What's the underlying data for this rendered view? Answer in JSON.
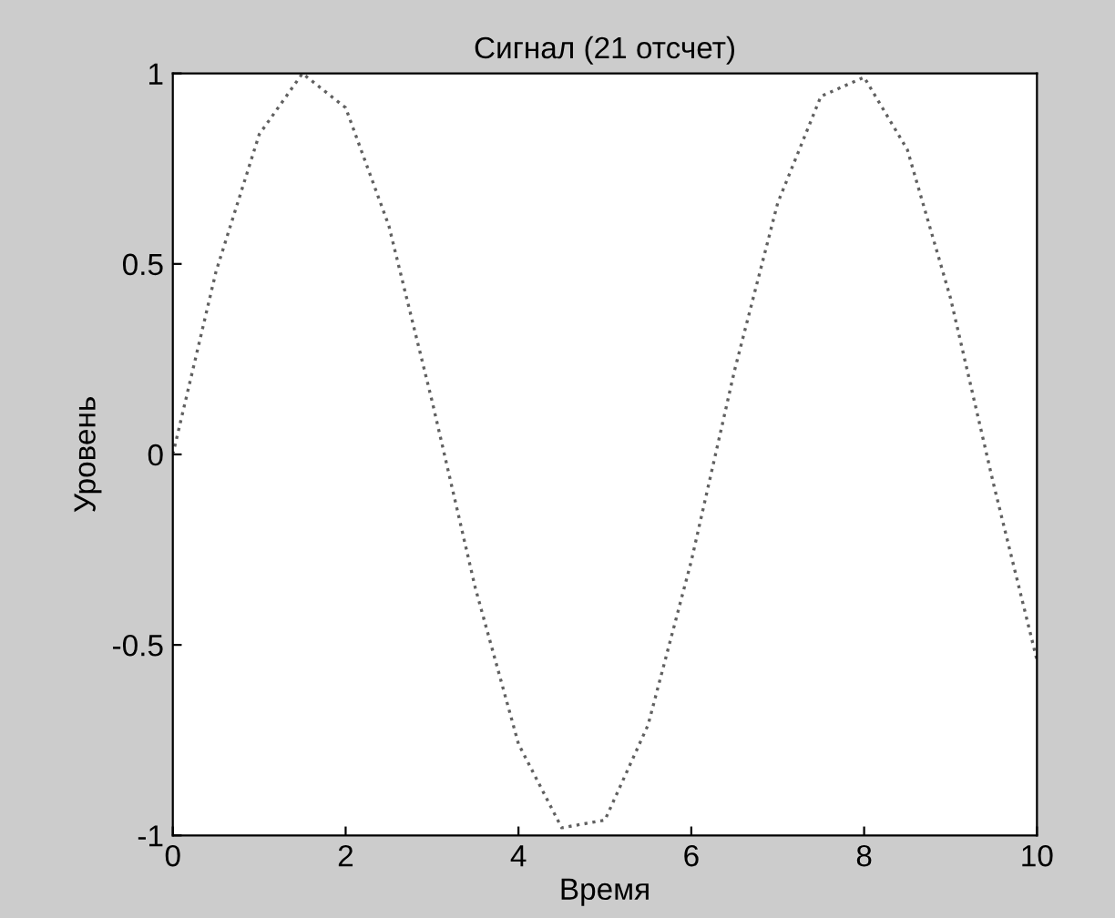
{
  "chart_data": {
    "type": "line",
    "title": "Сигнал (21 отсчет)",
    "xlabel": "Время",
    "ylabel": "Уровень",
    "x": [
      0,
      0.5,
      1,
      1.5,
      2,
      2.5,
      3,
      3.5,
      4,
      4.5,
      5,
      5.5,
      6,
      6.5,
      7,
      7.5,
      8,
      8.5,
      9,
      9.5,
      10
    ],
    "series": [
      {
        "color": "#606060",
        "values": [
          0,
          0.48,
          0.84,
          1.0,
          0.91,
          0.6,
          0.14,
          -0.35,
          -0.76,
          -0.98,
          -0.96,
          -0.71,
          -0.28,
          0.22,
          0.66,
          0.94,
          0.99,
          0.8,
          0.41,
          -0.08,
          -0.54
        ]
      }
    ],
    "xlim": [
      0,
      10
    ],
    "xticks": [
      0,
      2,
      4,
      6,
      8,
      10
    ],
    "ylim": [
      -1,
      1
    ],
    "yticks": [
      -1,
      -0.5,
      0,
      0.5,
      1
    ],
    "line_style": "dotted",
    "grid": false
  }
}
